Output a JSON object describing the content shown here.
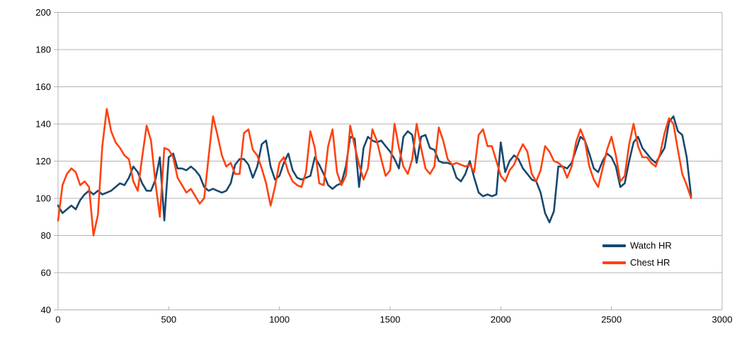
{
  "colors": {
    "background": "#ffffff",
    "gridline": "#b3b3b3",
    "axis": "#b3b3b3",
    "tick_label": "#000000",
    "watch_hr": "#17486F",
    "chest_hr": "#FF420E"
  },
  "legend": {
    "items": [
      {
        "label": "Watch HR",
        "color": "#17486F"
      },
      {
        "label": "Chest HR",
        "color": "#FF420E"
      }
    ]
  },
  "chart_data": {
    "type": "line",
    "title": "",
    "xlabel": "",
    "ylabel": "",
    "xlim": [
      0,
      3000
    ],
    "ylim": [
      40,
      200
    ],
    "x_ticks": [
      0,
      500,
      1000,
      1500,
      2000,
      2500,
      3000
    ],
    "y_ticks": [
      40,
      60,
      80,
      100,
      120,
      140,
      160,
      180,
      200
    ],
    "grid": "horizontal-only",
    "legend_position": "right-middle",
    "x_start": 0,
    "x_step": 20,
    "x_end": 2860,
    "series": [
      {
        "name": "Watch HR",
        "color": "#17486F",
        "values": [
          96,
          92,
          94,
          96,
          94,
          99,
          102,
          104,
          102,
          104,
          102,
          103,
          104,
          106,
          108,
          107,
          111,
          117,
          114,
          108,
          104,
          104,
          110,
          122,
          88,
          122,
          124,
          116,
          116,
          115,
          117,
          115,
          112,
          106,
          104,
          105,
          104,
          103,
          104,
          108,
          118,
          121,
          121,
          118,
          111,
          117,
          129,
          131,
          117,
          110,
          112,
          119,
          124,
          115,
          111,
          110,
          111,
          112,
          122,
          118,
          113,
          107,
          105,
          107,
          108,
          117,
          133,
          132,
          106,
          127,
          133,
          131,
          130,
          131,
          128,
          125,
          121,
          116,
          133,
          136,
          134,
          119,
          133,
          134,
          127,
          126,
          120,
          119,
          119,
          118,
          111,
          109,
          113,
          120,
          111,
          103,
          101,
          102,
          101,
          102,
          130,
          114,
          120,
          123,
          121,
          116,
          113,
          110,
          109,
          103,
          92,
          87,
          93,
          117,
          117,
          116,
          119,
          126,
          133,
          131,
          124,
          116,
          114,
          120,
          124,
          122,
          117,
          106,
          108,
          120,
          130,
          133,
          127,
          124,
          121,
          119,
          123,
          127,
          141,
          144,
          136,
          134,
          122,
          101
        ]
      },
      {
        "name": "Chest HR",
        "color": "#FF420E",
        "values": [
          88,
          107,
          113,
          116,
          114,
          107,
          109,
          106,
          80,
          91,
          128,
          148,
          136,
          130,
          127,
          123,
          121,
          109,
          104,
          122,
          139,
          131,
          108,
          90,
          127,
          126,
          122,
          111,
          107,
          103,
          105,
          101,
          97,
          100,
          122,
          144,
          134,
          123,
          117,
          119,
          113,
          113,
          135,
          137,
          126,
          123,
          116,
          108,
          96,
          106,
          119,
          122,
          114,
          109,
          107,
          106,
          114,
          136,
          127,
          108,
          107,
          128,
          137,
          114,
          107,
          112,
          139,
          128,
          118,
          110,
          116,
          137,
          131,
          121,
          112,
          115,
          140,
          127,
          117,
          113,
          121,
          140,
          127,
          116,
          113,
          117,
          138,
          131,
          121,
          118,
          119,
          118,
          117,
          118,
          114,
          134,
          137,
          128,
          128,
          120,
          112,
          109,
          115,
          118,
          124,
          129,
          125,
          113,
          109,
          115,
          128,
          125,
          120,
          119,
          117,
          111,
          117,
          130,
          137,
          131,
          117,
          110,
          106,
          116,
          126,
          133,
          123,
          109,
          112,
          129,
          140,
          128,
          122,
          122,
          119,
          117,
          124,
          135,
          143,
          140,
          126,
          113,
          107,
          100
        ]
      }
    ]
  }
}
